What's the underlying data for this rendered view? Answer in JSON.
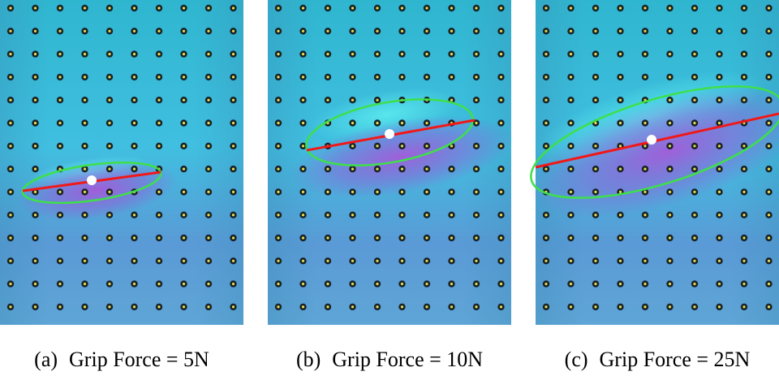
{
  "panels": [
    {
      "label": "(a)",
      "caption": "Grip Force = 5N"
    },
    {
      "label": "(b)",
      "caption": "Grip Force = 10N"
    },
    {
      "label": "(c)",
      "caption": "Grip Force = 25N"
    }
  ]
}
